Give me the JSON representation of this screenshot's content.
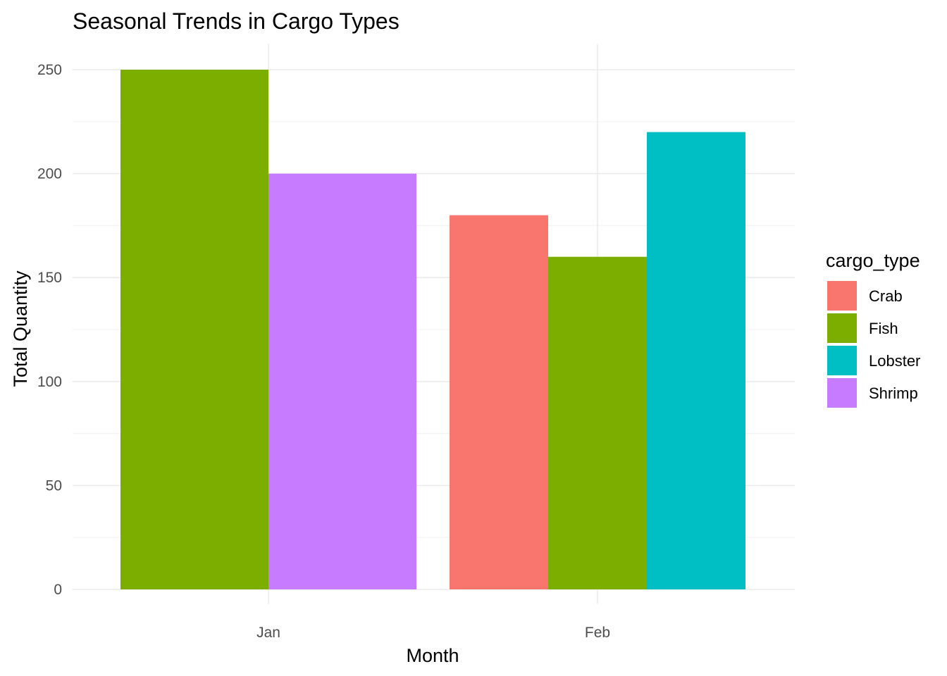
{
  "chart_data": {
    "type": "bar",
    "title": "Seasonal Trends in Cargo Types",
    "xlabel": "Month",
    "ylabel": "Total Quantity",
    "categories": [
      "Jan",
      "Feb"
    ],
    "series": [
      {
        "name": "Crab",
        "color": "#F8766D",
        "values": [
          null,
          180
        ]
      },
      {
        "name": "Fish",
        "color": "#7CAE00",
        "values": [
          250,
          160
        ]
      },
      {
        "name": "Lobster",
        "color": "#00BFC4",
        "values": [
          null,
          220
        ]
      },
      {
        "name": "Shrimp",
        "color": "#C77CFF",
        "values": [
          200,
          null
        ]
      }
    ],
    "ylim": [
      0,
      250
    ],
    "yticks": [
      0,
      50,
      100,
      150,
      200,
      250
    ],
    "legend": {
      "title": "cargo_type",
      "position": "right"
    },
    "grid": true
  }
}
